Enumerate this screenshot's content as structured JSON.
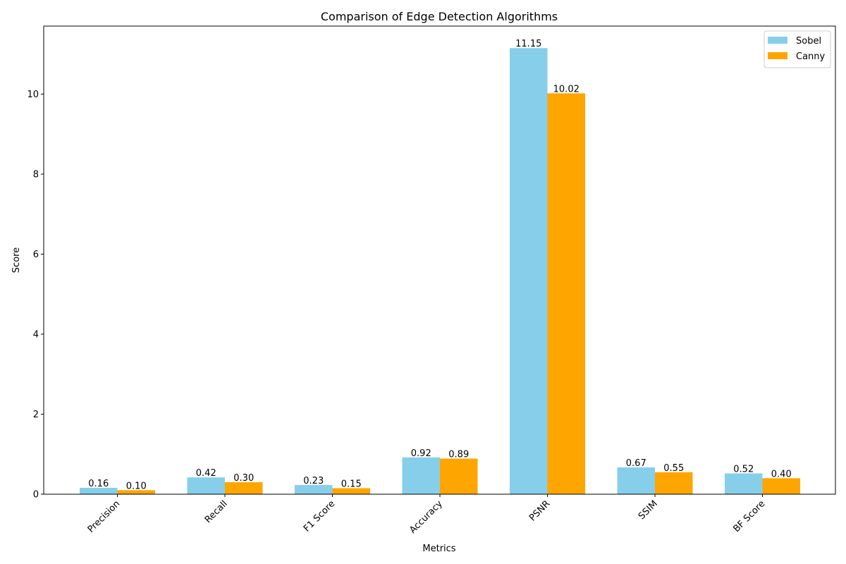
{
  "chart_data": {
    "type": "bar",
    "title": "Comparison of Edge Detection Algorithms",
    "xlabel": "Metrics",
    "ylabel": "Score",
    "categories": [
      "Precision",
      "Recall",
      "F1 Score",
      "Accuracy",
      "PSNR",
      "SSIM",
      "BF Score"
    ],
    "series": [
      {
        "name": "Sobel",
        "color": "#87CEEB",
        "values": [
          0.16,
          0.42,
          0.23,
          0.92,
          11.15,
          0.67,
          0.52
        ],
        "labels": [
          "0.16",
          "0.42",
          "0.23",
          "0.92",
          "11.15",
          "0.67",
          "0.52"
        ]
      },
      {
        "name": "Canny",
        "color": "#FFA500",
        "values": [
          0.1,
          0.3,
          0.15,
          0.89,
          10.02,
          0.55,
          0.4
        ],
        "labels": [
          "0.10",
          "0.30",
          "0.15",
          "0.89",
          "10.02",
          "0.55",
          "0.40"
        ]
      }
    ],
    "ylim": [
      0,
      11.7
    ],
    "yticks": [
      0,
      2,
      4,
      6,
      8,
      10
    ],
    "ytick_labels": [
      "0",
      "2",
      "4",
      "6",
      "8",
      "10"
    ],
    "xtick_rotation": 45,
    "grid": false,
    "legend_position": "top-right"
  }
}
